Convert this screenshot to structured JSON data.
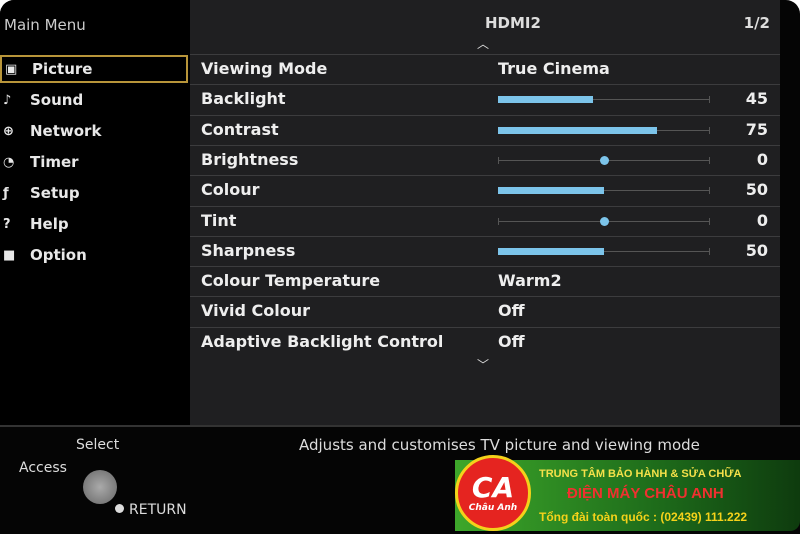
{
  "sidebar": {
    "title": "Main Menu",
    "items": [
      {
        "label": "Picture",
        "icon": "picture-icon",
        "glyph": "▣"
      },
      {
        "label": "Sound",
        "icon": "music-note-icon",
        "glyph": "♪"
      },
      {
        "label": "Network",
        "icon": "globe-icon",
        "glyph": "⊕"
      },
      {
        "label": "Timer",
        "icon": "clock-icon",
        "glyph": "◔"
      },
      {
        "label": "Setup",
        "icon": "wrench-icon",
        "glyph": "ƒ"
      },
      {
        "label": "Help",
        "icon": "help-icon",
        "glyph": "?"
      },
      {
        "label": "Option",
        "icon": "option-icon",
        "glyph": "■"
      }
    ]
  },
  "header": {
    "source": "HDMI2",
    "page": "1/2"
  },
  "settings": [
    {
      "label": "Viewing Mode",
      "value": "True Cinema"
    },
    {
      "label": "Backlight",
      "num": "45",
      "type": "bar",
      "level": 45
    },
    {
      "label": "Contrast",
      "num": "75",
      "type": "bar",
      "level": 75
    },
    {
      "label": "Brightness",
      "num": "0",
      "type": "center",
      "level": 0
    },
    {
      "label": "Colour",
      "num": "50",
      "type": "bar",
      "level": 50
    },
    {
      "label": "Tint",
      "num": "0",
      "type": "center",
      "level": 0
    },
    {
      "label": "Sharpness",
      "num": "50",
      "type": "bar",
      "level": 50
    },
    {
      "label": "Colour Temperature",
      "value": "Warm2"
    },
    {
      "label": "Vivid Colour",
      "value": "Off"
    },
    {
      "label": "Adaptive Backlight Control",
      "value": "Off"
    }
  ],
  "footer": {
    "select": "Select",
    "access": "Access",
    "return": "RETURN",
    "description": "Adjusts and customises TV picture and viewing mode"
  },
  "banner": {
    "logo": "CA",
    "logo_text": "Châu Anh",
    "line1": "TRUNG TÂM BẢO HÀNH & SỬA CHỮA",
    "line2": "ĐIỆN MÁY CHÂU ANH",
    "line3": "Tổng đài toàn quốc : (02439) 111.222"
  },
  "colors": {
    "slider": "#7cc4ea",
    "highlight": "#b8953a"
  }
}
